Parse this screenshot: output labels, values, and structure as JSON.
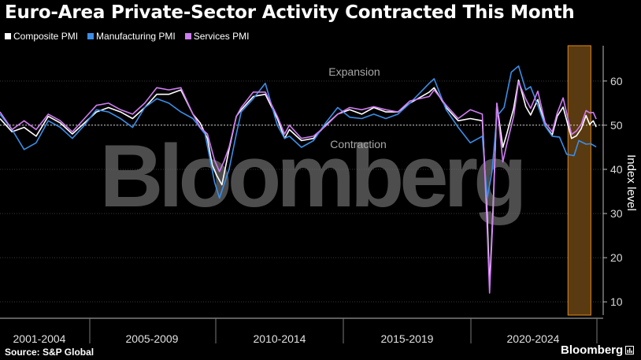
{
  "title": "Euro-Area Private-Sector Activity Contracted This Month",
  "legend": [
    {
      "name": "Composite PMI",
      "color": "#ffffff"
    },
    {
      "name": "Manufacturing PMI",
      "color": "#3b8ee8"
    },
    {
      "name": "Services PMI",
      "color": "#cf7cf2"
    }
  ],
  "source": "Source: S&P Global",
  "brand": "Bloomberg",
  "watermark": "Bloomberg",
  "chart_data": {
    "type": "line",
    "ylabel": "Index level",
    "ylim": [
      7,
      68
    ],
    "xlim": [
      2000.0,
      2024.75
    ],
    "yticks": [
      10,
      20,
      30,
      40,
      50,
      60
    ],
    "reference_line": 50,
    "x_groups": [
      "2001-2004",
      "2005-2009",
      "2010-2014",
      "2015-2019",
      "2020-2024"
    ],
    "annotations": [
      "Expansion",
      "Contraction"
    ],
    "highlight_range": [
      2023.55,
      2024.5
    ],
    "grid": true,
    "legend_position": "top-left",
    "series": [
      {
        "name": "Composite PMI",
        "color": "#ffffff",
        "points": [
          [
            2000.0,
            51.5
          ],
          [
            2000.5,
            48.5
          ],
          [
            2001.0,
            49.5
          ],
          [
            2001.5,
            47.5
          ],
          [
            2002.0,
            52
          ],
          [
            2002.5,
            50.5
          ],
          [
            2003.0,
            48
          ],
          [
            2003.5,
            50.5
          ],
          [
            2004.0,
            53
          ],
          [
            2004.5,
            54
          ],
          [
            2005.0,
            53
          ],
          [
            2005.5,
            51.5
          ],
          [
            2006.0,
            54
          ],
          [
            2006.5,
            57
          ],
          [
            2007.0,
            57
          ],
          [
            2007.5,
            58
          ],
          [
            2008.0,
            52.5
          ],
          [
            2008.3,
            50.5
          ],
          [
            2008.6,
            47
          ],
          [
            2008.8,
            41
          ],
          [
            2009.0,
            38.5
          ],
          [
            2009.2,
            36.5
          ],
          [
            2009.5,
            44.5
          ],
          [
            2009.8,
            52
          ],
          [
            2010.0,
            53.5
          ],
          [
            2010.5,
            56.5
          ],
          [
            2011.0,
            57
          ],
          [
            2011.5,
            51.5
          ],
          [
            2011.8,
            47
          ],
          [
            2012.0,
            49
          ],
          [
            2012.5,
            46.5
          ],
          [
            2013.0,
            47
          ],
          [
            2013.5,
            50
          ],
          [
            2014.0,
            52.5
          ],
          [
            2014.5,
            53.5
          ],
          [
            2015.0,
            52.5
          ],
          [
            2015.5,
            54
          ],
          [
            2016.0,
            53
          ],
          [
            2016.5,
            53
          ],
          [
            2017.0,
            55
          ],
          [
            2017.8,
            57.5
          ],
          [
            2018.0,
            58.5
          ],
          [
            2018.5,
            54
          ],
          [
            2019.0,
            51
          ],
          [
            2019.5,
            51.5
          ],
          [
            2020.0,
            51
          ],
          [
            2020.2,
            29.7
          ],
          [
            2020.3,
            13.6
          ],
          [
            2020.45,
            31.9
          ],
          [
            2020.6,
            54.9
          ],
          [
            2020.85,
            45
          ],
          [
            2021.0,
            47.8
          ],
          [
            2021.3,
            53.8
          ],
          [
            2021.5,
            60.2
          ],
          [
            2021.8,
            54.2
          ],
          [
            2022.0,
            52.3
          ],
          [
            2022.3,
            55.8
          ],
          [
            2022.6,
            49.9
          ],
          [
            2022.9,
            47.8
          ],
          [
            2023.1,
            52
          ],
          [
            2023.35,
            54.1
          ],
          [
            2023.7,
            47
          ],
          [
            2023.9,
            47.6
          ],
          [
            2024.1,
            49.2
          ],
          [
            2024.3,
            52.2
          ],
          [
            2024.45,
            50.2
          ],
          [
            2024.6,
            51
          ],
          [
            2024.72,
            49.6
          ]
        ]
      },
      {
        "name": "Manufacturing PMI",
        "color": "#3b8ee8",
        "points": [
          [
            2000.0,
            52.5
          ],
          [
            2000.5,
            49
          ],
          [
            2001.0,
            44.5
          ],
          [
            2001.5,
            46
          ],
          [
            2002.0,
            51
          ],
          [
            2002.5,
            49.5
          ],
          [
            2003.0,
            47
          ],
          [
            2003.5,
            50
          ],
          [
            2004.0,
            53.5
          ],
          [
            2004.5,
            53
          ],
          [
            2005.0,
            51.5
          ],
          [
            2005.5,
            49.5
          ],
          [
            2006.0,
            54
          ],
          [
            2006.5,
            56
          ],
          [
            2007.0,
            55
          ],
          [
            2007.5,
            53
          ],
          [
            2008.0,
            51.5
          ],
          [
            2008.5,
            48
          ],
          [
            2008.9,
            37
          ],
          [
            2009.1,
            33.5
          ],
          [
            2009.5,
            40
          ],
          [
            2009.8,
            48
          ],
          [
            2010.0,
            53
          ],
          [
            2010.5,
            56
          ],
          [
            2011.0,
            59.5
          ],
          [
            2011.5,
            50
          ],
          [
            2011.8,
            47
          ],
          [
            2012.0,
            47.5
          ],
          [
            2012.5,
            45
          ],
          [
            2013.0,
            46.5
          ],
          [
            2013.5,
            50.5
          ],
          [
            2014.0,
            54
          ],
          [
            2014.5,
            51.8
          ],
          [
            2015.0,
            51.5
          ],
          [
            2015.5,
            52.5
          ],
          [
            2016.0,
            51.5
          ],
          [
            2016.5,
            52.5
          ],
          [
            2017.0,
            55
          ],
          [
            2017.8,
            59.5
          ],
          [
            2018.0,
            60.5
          ],
          [
            2018.5,
            53.5
          ],
          [
            2019.0,
            49.5
          ],
          [
            2019.5,
            46
          ],
          [
            2020.0,
            47.5
          ],
          [
            2020.2,
            33.5
          ],
          [
            2020.4,
            39.5
          ],
          [
            2020.6,
            52
          ],
          [
            2020.9,
            54
          ],
          [
            2021.2,
            62
          ],
          [
            2021.5,
            63.4
          ],
          [
            2021.8,
            58
          ],
          [
            2022.0,
            58.7
          ],
          [
            2022.3,
            54.5
          ],
          [
            2022.6,
            49.8
          ],
          [
            2022.9,
            47.5
          ],
          [
            2023.2,
            47.3
          ],
          [
            2023.5,
            43.4
          ],
          [
            2023.8,
            43.1
          ],
          [
            2024.0,
            46.5
          ],
          [
            2024.3,
            45.7
          ],
          [
            2024.5,
            45.8
          ],
          [
            2024.72,
            45.1
          ]
        ]
      },
      {
        "name": "Services PMI",
        "color": "#cf7cf2",
        "points": [
          [
            2000.0,
            53
          ],
          [
            2000.5,
            49
          ],
          [
            2001.0,
            51
          ],
          [
            2001.5,
            49
          ],
          [
            2002.0,
            52.5
          ],
          [
            2002.5,
            51
          ],
          [
            2003.0,
            48.5
          ],
          [
            2003.5,
            51.5
          ],
          [
            2004.0,
            54.5
          ],
          [
            2004.5,
            55
          ],
          [
            2005.0,
            53.5
          ],
          [
            2005.5,
            52.5
          ],
          [
            2006.0,
            55
          ],
          [
            2006.5,
            58.5
          ],
          [
            2007.0,
            58
          ],
          [
            2007.5,
            58.5
          ],
          [
            2008.0,
            52.5
          ],
          [
            2008.3,
            49.5
          ],
          [
            2008.6,
            48
          ],
          [
            2008.9,
            42
          ],
          [
            2009.1,
            39.5
          ],
          [
            2009.3,
            42
          ],
          [
            2009.5,
            45
          ],
          [
            2009.8,
            52
          ],
          [
            2010.0,
            54
          ],
          [
            2010.5,
            57.5
          ],
          [
            2011.0,
            57.5
          ],
          [
            2011.5,
            52
          ],
          [
            2011.8,
            48
          ],
          [
            2012.0,
            50
          ],
          [
            2012.5,
            47
          ],
          [
            2013.0,
            47.5
          ],
          [
            2013.5,
            49.8
          ],
          [
            2014.0,
            52.5
          ],
          [
            2014.5,
            54
          ],
          [
            2015.0,
            53.5
          ],
          [
            2015.5,
            54.2
          ],
          [
            2016.0,
            53.5
          ],
          [
            2016.5,
            53
          ],
          [
            2017.0,
            55.5
          ],
          [
            2017.8,
            56.5
          ],
          [
            2018.0,
            58
          ],
          [
            2018.5,
            54.5
          ],
          [
            2019.0,
            51.5
          ],
          [
            2019.5,
            53.5
          ],
          [
            2020.0,
            52.5
          ],
          [
            2020.2,
            26.4
          ],
          [
            2020.3,
            12
          ],
          [
            2020.45,
            30.5
          ],
          [
            2020.6,
            55
          ],
          [
            2020.85,
            41.7
          ],
          [
            2021.0,
            45.4
          ],
          [
            2021.3,
            52
          ],
          [
            2021.5,
            59.8
          ],
          [
            2021.8,
            55.9
          ],
          [
            2022.0,
            53.8
          ],
          [
            2022.3,
            57.7
          ],
          [
            2022.6,
            50.6
          ],
          [
            2022.9,
            48.5
          ],
          [
            2023.1,
            52.7
          ],
          [
            2023.35,
            56.2
          ],
          [
            2023.7,
            47.9
          ],
          [
            2023.9,
            48.7
          ],
          [
            2024.1,
            50.2
          ],
          [
            2024.3,
            53.3
          ],
          [
            2024.45,
            52.8
          ],
          [
            2024.6,
            52.9
          ],
          [
            2024.72,
            51.4
          ]
        ]
      }
    ]
  }
}
